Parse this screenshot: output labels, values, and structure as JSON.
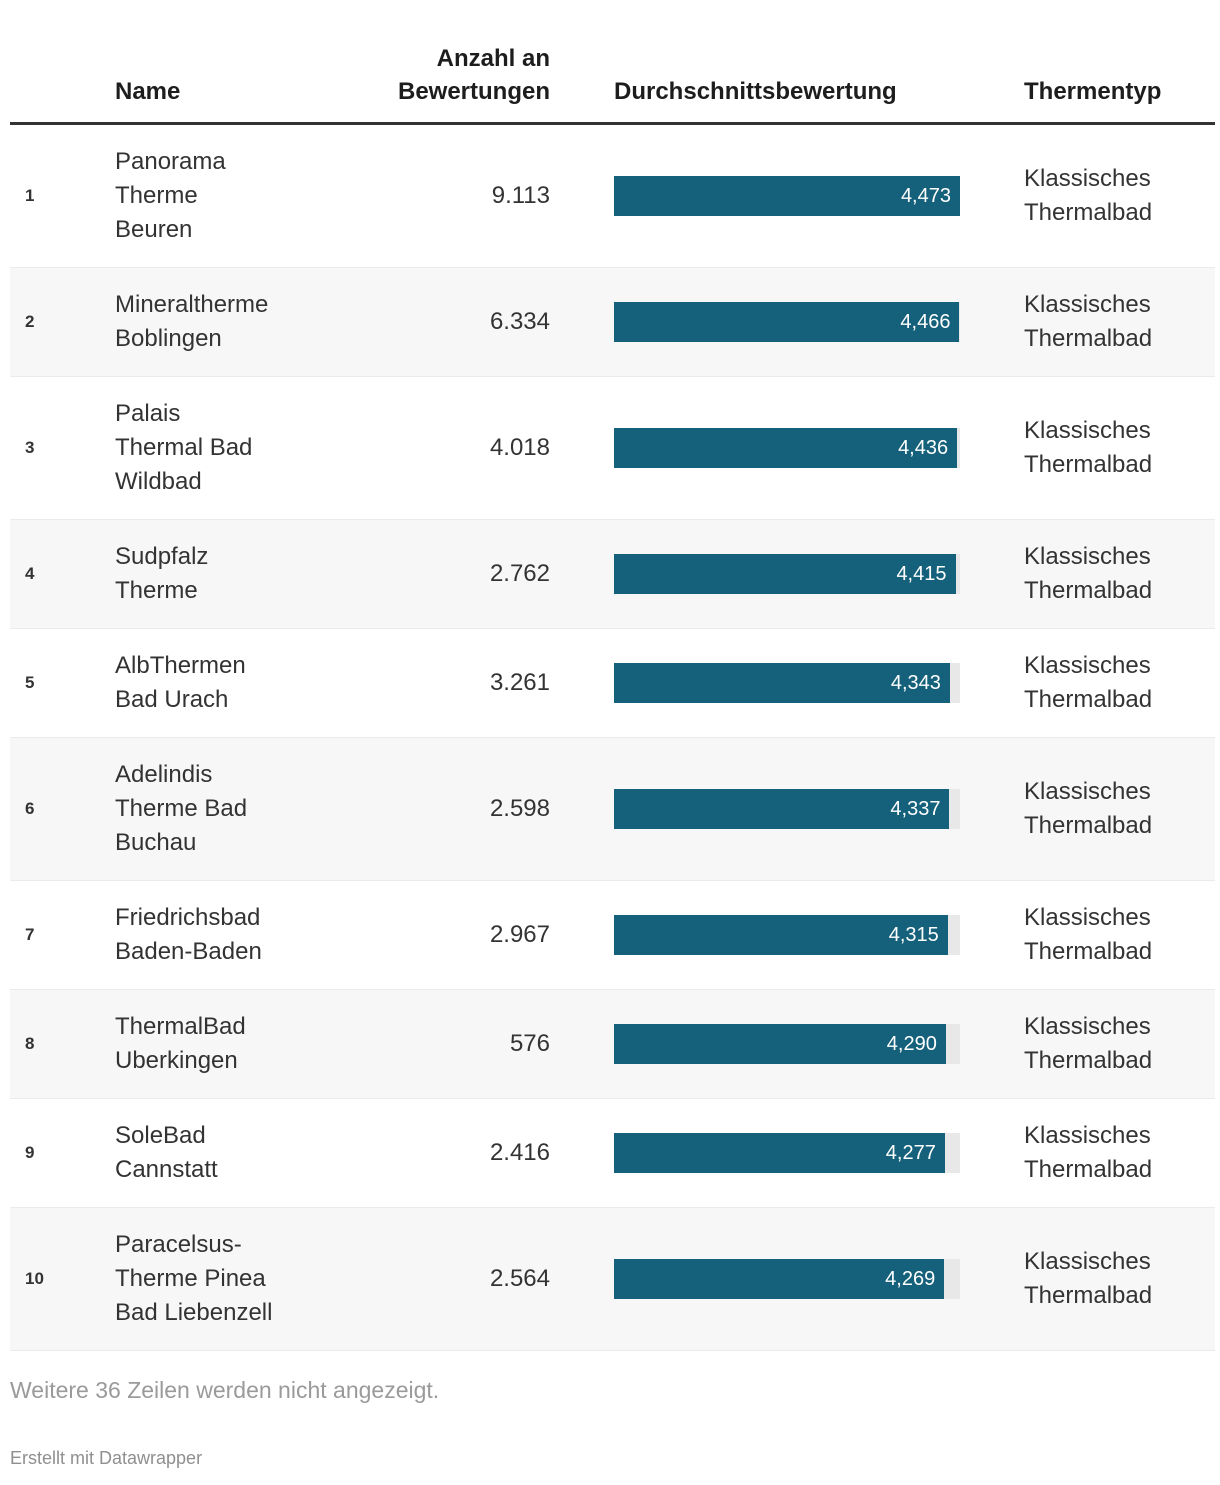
{
  "colors": {
    "bar": "#15607a",
    "bar_track": "#e8e8e8",
    "zebra_row": "#f7f7f7",
    "header_border": "#333333",
    "text": "#333333",
    "muted_text": "#9a9a9a"
  },
  "header": {
    "name": "Name",
    "reviews": "Anzahl an Bewertungen",
    "rating": "Durchschnittsbewertung",
    "type": "Thermentyp"
  },
  "chart_data": {
    "type": "table",
    "columns": [
      "Name",
      "Anzahl an Bewertungen",
      "Durchschnittsbewertung",
      "Thermentyp"
    ],
    "bar_column": "Durchschnittsbewertung",
    "bar_axis_min": 0,
    "bar_axis_max": 4.473,
    "rows": [
      {
        "rank": "1",
        "name": "Panorama Therme Beuren",
        "name_lines": [
          "Panorama",
          "Therme",
          "Beuren"
        ],
        "reviews": "9.113",
        "rating_label": "4,473",
        "rating_value": 4.473,
        "type": "Klassisches Thermalbad",
        "type_lines": [
          "Klassisches",
          "Thermalbad"
        ]
      },
      {
        "rank": "2",
        "name": "Mineraltherme Boblingen",
        "name_lines": [
          "Mineraltherme",
          "Boblingen"
        ],
        "reviews": "6.334",
        "rating_label": "4,466",
        "rating_value": 4.466,
        "type": "Klassisches Thermalbad",
        "type_lines": [
          "Klassisches",
          "Thermalbad"
        ]
      },
      {
        "rank": "3",
        "name": "Palais Thermal Bad Wildbad",
        "name_lines": [
          "Palais",
          "Thermal Bad",
          "Wildbad"
        ],
        "reviews": "4.018",
        "rating_label": "4,436",
        "rating_value": 4.436,
        "type": "Klassisches Thermalbad",
        "type_lines": [
          "Klassisches",
          "Thermalbad"
        ]
      },
      {
        "rank": "4",
        "name": "Sudpfalz Therme",
        "name_lines": [
          "Sudpfalz",
          "Therme"
        ],
        "reviews": "2.762",
        "rating_label": "4,415",
        "rating_value": 4.415,
        "type": "Klassisches Thermalbad",
        "type_lines": [
          "Klassisches",
          "Thermalbad"
        ]
      },
      {
        "rank": "5",
        "name": "AlbThermen Bad Urach",
        "name_lines": [
          "AlbThermen",
          "Bad Urach"
        ],
        "reviews": "3.261",
        "rating_label": "4,343",
        "rating_value": 4.343,
        "type": "Klassisches Thermalbad",
        "type_lines": [
          "Klassisches",
          "Thermalbad"
        ]
      },
      {
        "rank": "6",
        "name": "Adelindis Therme Bad Buchau",
        "name_lines": [
          "Adelindis",
          "Therme Bad",
          "Buchau"
        ],
        "reviews": "2.598",
        "rating_label": "4,337",
        "rating_value": 4.337,
        "type": "Klassisches Thermalbad",
        "type_lines": [
          "Klassisches",
          "Thermalbad"
        ]
      },
      {
        "rank": "7",
        "name": "Friedrichsbad Baden-Baden",
        "name_lines": [
          "Friedrichsbad",
          "Baden-Baden"
        ],
        "reviews": "2.967",
        "rating_label": "4,315",
        "rating_value": 4.315,
        "type": "Klassisches Thermalbad",
        "type_lines": [
          "Klassisches",
          "Thermalbad"
        ]
      },
      {
        "rank": "8",
        "name": "ThermalBad Uberkingen",
        "name_lines": [
          "ThermalBad",
          "Uberkingen"
        ],
        "reviews": "576",
        "rating_label": "4,290",
        "rating_value": 4.29,
        "type": "Klassisches Thermalbad",
        "type_lines": [
          "Klassisches",
          "Thermalbad"
        ]
      },
      {
        "rank": "9",
        "name": "SoleBad Cannstatt",
        "name_lines": [
          "SoleBad",
          "Cannstatt"
        ],
        "reviews": "2.416",
        "rating_label": "4,277",
        "rating_value": 4.277,
        "type": "Klassisches Thermalbad",
        "type_lines": [
          "Klassisches",
          "Thermalbad"
        ]
      },
      {
        "rank": "10",
        "name": "Paracelsus-Therme Pinea Bad Liebenzell",
        "name_lines": [
          "Paracelsus-",
          "Therme Pinea",
          "Bad Liebenzell"
        ],
        "reviews": "2.564",
        "rating_label": "4,269",
        "rating_value": 4.269,
        "type": "Klassisches Thermalbad",
        "type_lines": [
          "Klassisches",
          "Thermalbad"
        ]
      }
    ]
  },
  "footer": {
    "more_rows_note": "Weitere 36 Zeilen werden nicht angezeigt.",
    "credit": "Erstellt mit Datawrapper"
  }
}
